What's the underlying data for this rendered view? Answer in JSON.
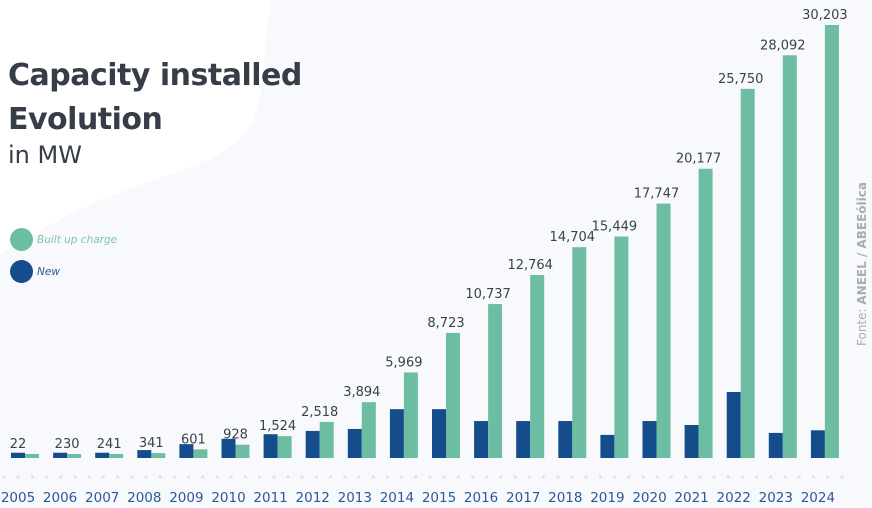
{
  "header": {
    "title_line1": "Capacity installed",
    "title_line2": "Evolution",
    "subtitle": "in MW"
  },
  "legend": [
    {
      "label": "Built up charge",
      "color": "#6dbda2",
      "text_color": "#7cc5ad"
    },
    {
      "label": "New",
      "color": "#154d8c",
      "text_color": "#2b5a95"
    }
  ],
  "source": {
    "prefix": "Fonte: ",
    "name": "ANEEL / ABEEólica"
  },
  "chart_data": {
    "type": "bar",
    "title": "Capacity installed Evolution",
    "subtitle": "in MW",
    "xlabel": "",
    "ylabel": "MW",
    "categories": [
      "2005",
      "2006",
      "2007",
      "2008",
      "2009",
      "2010",
      "2011",
      "2012",
      "2013",
      "2014",
      "2015",
      "2016",
      "2017",
      "2018",
      "2019",
      "2020",
      "2021",
      "2022",
      "2023",
      "2024"
    ],
    "series": [
      {
        "name": "New",
        "color": "#154d8c",
        "labeled": false,
        "note": "unlabeled; relative bar height index (approximate, 0-100 scale)",
        "values": [
          8,
          8,
          8,
          12,
          21,
          29,
          36,
          41,
          44,
          74,
          74,
          56,
          56,
          56,
          35,
          56,
          50,
          100,
          38,
          42
        ]
      },
      {
        "name": "Built up charge",
        "color": "#6dbda2",
        "labeled": true,
        "values": [
          22,
          230,
          241,
          341,
          601,
          928,
          1524,
          2518,
          3894,
          5969,
          8723,
          10737,
          12764,
          14704,
          15449,
          17747,
          20177,
          25750,
          28092,
          30203
        ],
        "labels": [
          "22",
          "230",
          "241",
          "341",
          "601",
          "928",
          "1,524",
          "2,518",
          "3,894",
          "5,969",
          "8,723",
          "10,737",
          "12,764",
          "14,704",
          "15,449",
          "17,747",
          "20,177",
          "25,750",
          "28,092",
          "30,203"
        ]
      }
    ],
    "ylim": [
      0,
      30203
    ],
    "grid": false,
    "legend_position": "left"
  }
}
